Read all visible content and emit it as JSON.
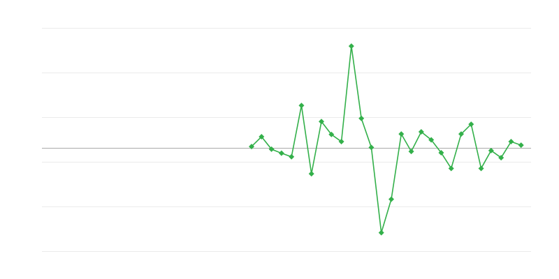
{
  "chart_data": {
    "type": "line",
    "title": "",
    "xlabel": "",
    "ylabel": "",
    "x": [
      0,
      1,
      2,
      3,
      4,
      5,
      6,
      7,
      8,
      9,
      10,
      11,
      12,
      13,
      14,
      15,
      16,
      17,
      18,
      19,
      20,
      21,
      22,
      23,
      24,
      25,
      26,
      27
    ],
    "series": [
      {
        "values": [
          0.03,
          0.25,
          -0.03,
          -0.12,
          -0.2,
          0.95,
          -0.58,
          0.59,
          0.3,
          0.14,
          2.28,
          0.66,
          0.01,
          -1.9,
          -1.15,
          0.31,
          -0.08,
          0.36,
          0.18,
          -0.11,
          -0.46,
          0.31,
          0.53,
          -0.46,
          -0.06,
          -0.22,
          0.14,
          0.06
        ],
        "color": "#33b04a",
        "marker": "diamond"
      }
    ],
    "xlim": [
      -21,
      28
    ],
    "ylim": [
      -2.3125,
      2.6875
    ],
    "gridlines_y": [
      2.6875,
      1.6875,
      0.6875,
      -0.3125,
      -1.3125,
      -2.3125
    ],
    "baseline_y": 0,
    "grid": true,
    "legend": "none",
    "colors": {
      "grid": "#ebebeb",
      "baseline": "#aaaaaa"
    }
  }
}
